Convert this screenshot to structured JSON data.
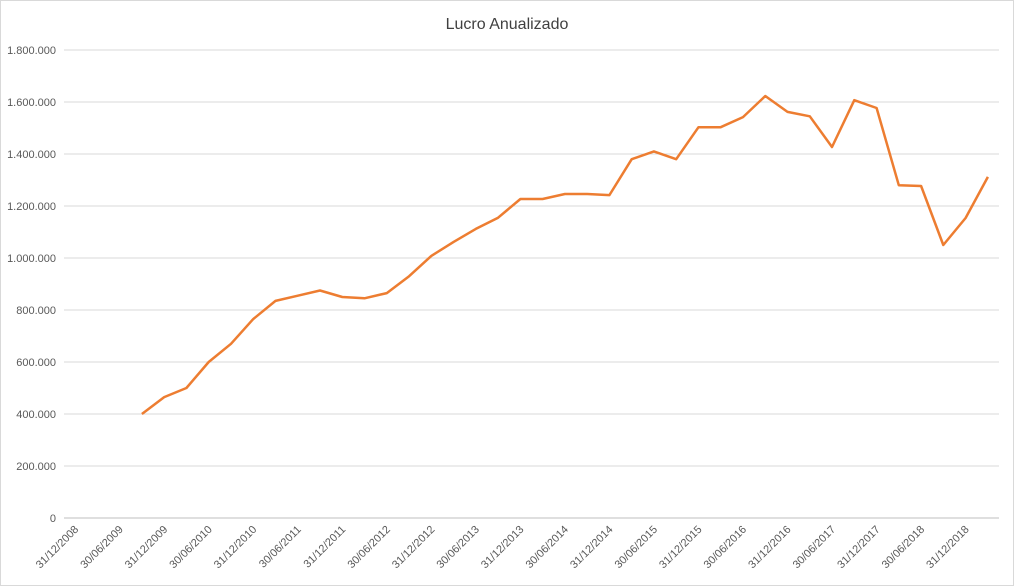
{
  "chart_data": {
    "type": "line",
    "title": "Lucro Anualizado",
    "categories": [
      "31/12/2008",
      null,
      "30/06/2009",
      null,
      "31/12/2009",
      null,
      "30/06/2010",
      null,
      "31/12/2010",
      null,
      "30/06/2011",
      null,
      "31/12/2011",
      null,
      "30/06/2012",
      null,
      "31/12/2012",
      null,
      "30/06/2013",
      null,
      "31/12/2013",
      null,
      "30/06/2014",
      null,
      "31/12/2014",
      null,
      "30/06/2015",
      null,
      "31/12/2015",
      null,
      "30/06/2016",
      null,
      "31/12/2016",
      null,
      "30/06/2017",
      null,
      "31/12/2017",
      null,
      "30/06/2018",
      null,
      "31/12/2018",
      null
    ],
    "series": [
      {
        "name": "Lucro Anualizado",
        "color": "#ed7d31",
        "values": [
          null,
          null,
          null,
          400000,
          465000,
          500000,
          600000,
          670000,
          765000,
          835000,
          855000,
          875000,
          850000,
          845000,
          865000,
          930000,
          1008000,
          1062000,
          1112000,
          1155000,
          1227000,
          1227000,
          1246000,
          1246000,
          1242000,
          1380000,
          1410000,
          1380000,
          1503000,
          1503000,
          1542000,
          1623000,
          1562000,
          1545000,
          1427000,
          1607000,
          1577000,
          1280000,
          1277000,
          1050000,
          1154000,
          1312000
        ]
      }
    ],
    "ylim": [
      0,
      1800000
    ],
    "yticks": [
      0,
      {
        "value": 200000,
        "label": "200.000"
      },
      {
        "value": 400000,
        "label": "400.000"
      },
      {
        "value": 600000,
        "label": "600.000"
      },
      {
        "value": 800000,
        "label": "800.000"
      },
      {
        "value": 1000000,
        "label": "1.000.000"
      },
      {
        "value": 1200000,
        "label": "1.200.000"
      },
      {
        "value": 1400000,
        "label": "1.400.000"
      },
      {
        "value": 1600000,
        "label": "1.600.000"
      },
      {
        "value": 1800000,
        "label": "1.800.000"
      }
    ],
    "grid": true
  }
}
